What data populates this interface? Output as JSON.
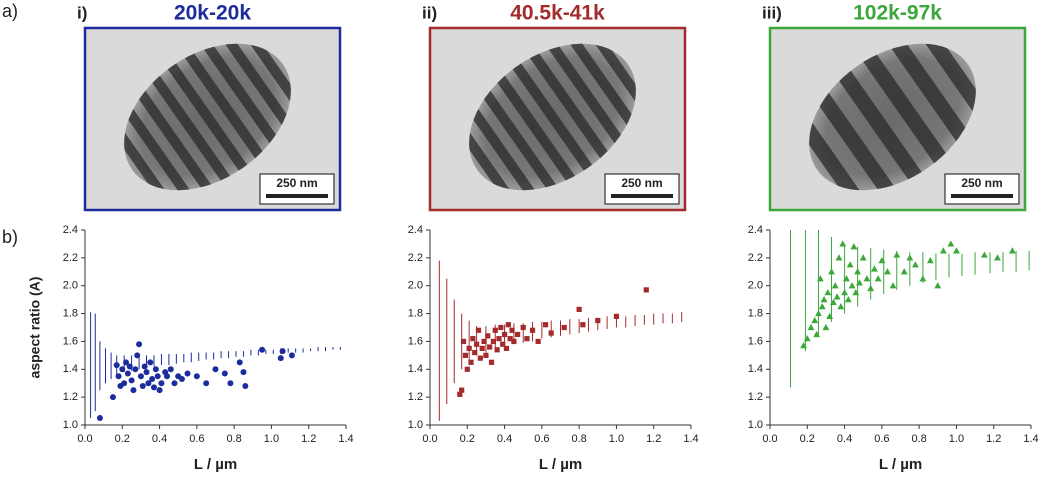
{
  "figure_labels": [
    "a)",
    "b)"
  ],
  "chart_data": [
    {
      "type": "scatter",
      "panel": "i)",
      "title": "20k-20k",
      "scale_bar": "250 nm",
      "color": "#1c2c9c",
      "marker": "circle",
      "ylabel": "aspect ratio (A)",
      "xlabel": "L / µm",
      "xlim": [
        0,
        1.4
      ],
      "ylim": [
        1.0,
        2.4
      ],
      "xticks": [
        {
          "value": 0,
          "label": "0.0"
        },
        {
          "value": 0.2,
          "label": "0.2"
        },
        {
          "value": 0.4,
          "label": "0.4"
        },
        {
          "value": 0.6,
          "label": "0.6"
        },
        {
          "value": 0.8,
          "label": "0.8"
        },
        {
          "value": 1.0,
          "label": "1.0"
        },
        {
          "value": 1.2,
          "label": "1.2"
        },
        {
          "value": 1.4,
          "label": "1.4"
        }
      ],
      "yticks": [
        {
          "value": 1.0,
          "label": "1.0"
        },
        {
          "value": 1.2,
          "label": "1.2"
        },
        {
          "value": 1.4,
          "label": "1.4"
        },
        {
          "value": 1.6,
          "label": "1.6"
        },
        {
          "value": 1.8,
          "label": "1.8"
        },
        {
          "value": 2.0,
          "label": "2.0"
        },
        {
          "value": 2.2,
          "label": "2.2"
        },
        {
          "value": 2.4,
          "label": "2.4"
        }
      ],
      "x": [
        0.08,
        0.15,
        0.17,
        0.18,
        0.19,
        0.2,
        0.21,
        0.22,
        0.23,
        0.24,
        0.25,
        0.26,
        0.27,
        0.28,
        0.29,
        0.3,
        0.31,
        0.32,
        0.33,
        0.34,
        0.35,
        0.36,
        0.37,
        0.38,
        0.39,
        0.4,
        0.41,
        0.43,
        0.44,
        0.46,
        0.48,
        0.5,
        0.52,
        0.55,
        0.6,
        0.65,
        0.7,
        0.75,
        0.78,
        0.83,
        0.85,
        0.86,
        0.95,
        1.05,
        1.06,
        1.11
      ],
      "values": [
        1.05,
        1.2,
        1.43,
        1.35,
        1.28,
        1.4,
        1.3,
        1.45,
        1.37,
        1.42,
        1.32,
        1.25,
        1.4,
        1.5,
        1.58,
        1.35,
        1.28,
        1.42,
        1.38,
        1.3,
        1.45,
        1.33,
        1.27,
        1.4,
        1.35,
        1.25,
        1.3,
        1.38,
        1.35,
        1.4,
        1.3,
        1.35,
        1.33,
        1.37,
        1.35,
        1.3,
        1.4,
        1.37,
        1.3,
        1.45,
        1.38,
        1.28,
        1.54,
        1.48,
        1.53,
        1.5
      ],
      "bands": {
        "x": [
          0.03,
          0.055,
          0.08,
          0.11,
          0.14,
          0.17,
          0.21,
          0.25,
          0.29,
          0.33,
          0.37,
          0.41,
          0.45,
          0.49,
          0.53,
          0.57,
          0.61,
          0.65,
          0.69,
          0.73,
          0.77,
          0.81,
          0.85,
          0.89,
          0.93,
          0.97,
          1.01,
          1.05,
          1.09,
          1.13,
          1.17,
          1.21,
          1.25,
          1.29,
          1.33,
          1.37
        ],
        "low": [
          1.05,
          1.1,
          1.25,
          1.3,
          1.33,
          1.36,
          1.38,
          1.39,
          1.4,
          1.41,
          1.42,
          1.43,
          1.43,
          1.44,
          1.45,
          1.45,
          1.46,
          1.47,
          1.47,
          1.48,
          1.48,
          1.49,
          1.49,
          1.5,
          1.5,
          1.51,
          1.51,
          1.51,
          1.52,
          1.52,
          1.52,
          1.53,
          1.53,
          1.53,
          1.54,
          1.54
        ],
        "high": [
          1.81,
          1.8,
          1.6,
          1.55,
          1.52,
          1.5,
          1.5,
          1.5,
          1.5,
          1.5,
          1.5,
          1.51,
          1.51,
          1.51,
          1.51,
          1.52,
          1.52,
          1.52,
          1.52,
          1.53,
          1.53,
          1.53,
          1.53,
          1.54,
          1.54,
          1.54,
          1.54,
          1.55,
          1.55,
          1.55,
          1.55,
          1.55,
          1.56,
          1.56,
          1.56,
          1.56
        ]
      }
    },
    {
      "type": "scatter",
      "panel": "ii)",
      "title": "40.5k-41k",
      "scale_bar": "250 nm",
      "color": "#a32b2b",
      "marker": "square",
      "xlabel": "L / µm",
      "xlim": [
        0,
        1.4
      ],
      "ylim": [
        1.0,
        2.4
      ],
      "xticks": [
        {
          "value": 0,
          "label": "0.0"
        },
        {
          "value": 0.2,
          "label": "0.2"
        },
        {
          "value": 0.4,
          "label": "0.4"
        },
        {
          "value": 0.6,
          "label": "0.6"
        },
        {
          "value": 0.8,
          "label": "0.8"
        },
        {
          "value": 1.0,
          "label": "1.0"
        },
        {
          "value": 1.2,
          "label": "1.2"
        },
        {
          "value": 1.4,
          "label": "1.4"
        }
      ],
      "yticks": [
        {
          "value": 1.0,
          "label": "1.0"
        },
        {
          "value": 1.2,
          "label": "1.2"
        },
        {
          "value": 1.4,
          "label": "1.4"
        },
        {
          "value": 1.6,
          "label": "1.6"
        },
        {
          "value": 1.8,
          "label": "1.8"
        },
        {
          "value": 2.0,
          "label": "2.0"
        },
        {
          "value": 2.2,
          "label": "2.2"
        },
        {
          "value": 2.4,
          "label": "2.4"
        }
      ],
      "x": [
        0.16,
        0.17,
        0.18,
        0.19,
        0.2,
        0.21,
        0.22,
        0.23,
        0.24,
        0.25,
        0.26,
        0.27,
        0.28,
        0.29,
        0.3,
        0.31,
        0.32,
        0.33,
        0.34,
        0.35,
        0.36,
        0.37,
        0.38,
        0.39,
        0.4,
        0.41,
        0.42,
        0.43,
        0.44,
        0.45,
        0.47,
        0.5,
        0.52,
        0.55,
        0.58,
        0.62,
        0.65,
        0.72,
        0.8,
        0.82,
        0.9,
        1.0,
        1.16
      ],
      "values": [
        1.22,
        1.25,
        1.6,
        1.5,
        1.4,
        1.55,
        1.45,
        1.62,
        1.52,
        1.58,
        1.68,
        1.48,
        1.55,
        1.6,
        1.5,
        1.64,
        1.56,
        1.45,
        1.6,
        1.68,
        1.54,
        1.62,
        1.7,
        1.58,
        1.65,
        1.55,
        1.72,
        1.62,
        1.68,
        1.6,
        1.65,
        1.7,
        1.62,
        1.68,
        1.6,
        1.72,
        1.66,
        1.7,
        1.83,
        1.72,
        1.75,
        1.78,
        1.97
      ],
      "bands": {
        "x": [
          0.05,
          0.09,
          0.13,
          0.17,
          0.21,
          0.25,
          0.3,
          0.35,
          0.4,
          0.45,
          0.5,
          0.55,
          0.6,
          0.65,
          0.7,
          0.75,
          0.8,
          0.85,
          0.9,
          0.95,
          1.0,
          1.05,
          1.1,
          1.15,
          1.2,
          1.25,
          1.3,
          1.35
        ],
        "low": [
          1.03,
          1.15,
          1.3,
          1.4,
          1.45,
          1.5,
          1.52,
          1.54,
          1.56,
          1.58,
          1.59,
          1.6,
          1.62,
          1.63,
          1.64,
          1.65,
          1.66,
          1.67,
          1.68,
          1.69,
          1.7,
          1.7,
          1.71,
          1.72,
          1.72,
          1.73,
          1.73,
          1.74
        ],
        "high": [
          2.18,
          2.05,
          1.9,
          1.8,
          1.75,
          1.71,
          1.71,
          1.72,
          1.72,
          1.73,
          1.73,
          1.74,
          1.74,
          1.75,
          1.75,
          1.76,
          1.76,
          1.77,
          1.77,
          1.78,
          1.78,
          1.78,
          1.79,
          1.79,
          1.8,
          1.8,
          1.8,
          1.81
        ]
      }
    },
    {
      "type": "scatter",
      "panel": "iii)",
      "title": "102k-97k",
      "scale_bar": "250 nm",
      "color": "#3aa83a",
      "marker": "triangle",
      "xlabel": "L / µm",
      "xlim": [
        0,
        1.4
      ],
      "ylim": [
        1.0,
        2.4
      ],
      "xticks": [
        {
          "value": 0,
          "label": "0.0"
        },
        {
          "value": 0.2,
          "label": "0.2"
        },
        {
          "value": 0.4,
          "label": "0.4"
        },
        {
          "value": 0.6,
          "label": "0.6"
        },
        {
          "value": 0.8,
          "label": "0.8"
        },
        {
          "value": 1.0,
          "label": "1.0"
        },
        {
          "value": 1.2,
          "label": "1.2"
        },
        {
          "value": 1.4,
          "label": "1.4"
        }
      ],
      "yticks": [
        {
          "value": 1.0,
          "label": "1.0"
        },
        {
          "value": 1.2,
          "label": "1.2"
        },
        {
          "value": 1.4,
          "label": "1.4"
        },
        {
          "value": 1.6,
          "label": "1.6"
        },
        {
          "value": 1.8,
          "label": "1.8"
        },
        {
          "value": 2.0,
          "label": "2.0"
        },
        {
          "value": 2.2,
          "label": "2.2"
        },
        {
          "value": 2.4,
          "label": "2.4"
        }
      ],
      "x": [
        0.18,
        0.2,
        0.22,
        0.24,
        0.25,
        0.26,
        0.27,
        0.28,
        0.29,
        0.3,
        0.31,
        0.32,
        0.33,
        0.34,
        0.35,
        0.36,
        0.37,
        0.38,
        0.39,
        0.4,
        0.41,
        0.42,
        0.43,
        0.44,
        0.45,
        0.46,
        0.47,
        0.48,
        0.5,
        0.52,
        0.54,
        0.56,
        0.58,
        0.6,
        0.63,
        0.66,
        0.68,
        0.72,
        0.75,
        0.78,
        0.82,
        0.86,
        0.9,
        0.93,
        0.97,
        1.0,
        1.15,
        1.22,
        1.3
      ],
      "values": [
        1.57,
        1.62,
        1.7,
        1.75,
        1.65,
        1.8,
        2.05,
        1.85,
        1.9,
        1.7,
        1.95,
        1.78,
        2.1,
        1.88,
        2.0,
        1.92,
        2.2,
        1.85,
        2.3,
        1.95,
        2.05,
        1.9,
        2.15,
        2.0,
        2.28,
        1.95,
        2.1,
        2.02,
        2.2,
        2.05,
        1.98,
        2.12,
        2.05,
        2.18,
        2.1,
        2.0,
        2.22,
        2.1,
        2.2,
        2.15,
        2.05,
        2.18,
        2.0,
        2.25,
        2.3,
        2.25,
        2.22,
        2.2,
        2.25
      ],
      "bands": {
        "x": [
          0.11,
          0.19,
          0.26,
          0.33,
          0.4,
          0.47,
          0.54,
          0.61,
          0.68,
          0.75,
          0.82,
          0.89,
          0.96,
          1.03,
          1.1,
          1.18,
          1.25,
          1.32,
          1.39
        ],
        "low": [
          1.27,
          1.53,
          1.65,
          1.74,
          1.8,
          1.85,
          1.9,
          1.94,
          1.97,
          2.0,
          2.02,
          2.04,
          2.06,
          2.07,
          2.08,
          2.09,
          2.1,
          2.1,
          2.11
        ],
        "high": [
          2.4,
          2.4,
          2.4,
          2.35,
          2.3,
          2.28,
          2.27,
          2.26,
          2.25,
          2.24,
          2.24,
          2.23,
          2.23,
          2.23,
          2.24,
          2.24,
          2.24,
          2.25,
          2.25
        ]
      }
    }
  ]
}
